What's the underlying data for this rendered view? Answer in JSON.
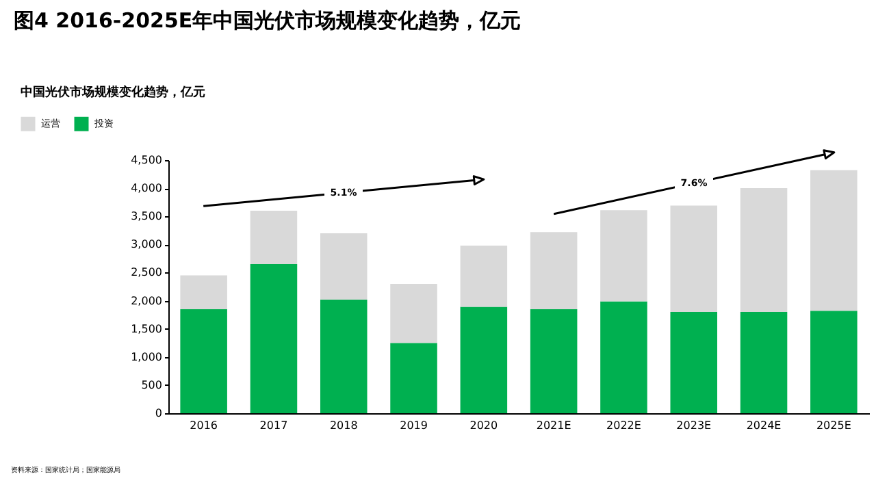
{
  "chart_data": {
    "type": "bar",
    "title": "图4 2016-2025E年中国光伏市场规模变化趋势，亿元",
    "subtitle": "中国光伏市场规模变化趋势，亿元",
    "categories": [
      "2016",
      "2017",
      "2018",
      "2019",
      "2020",
      "2021E",
      "2022E",
      "2023E",
      "2024E",
      "2025E"
    ],
    "stacked": true,
    "series": [
      {
        "name": "投资",
        "color": "#00b050",
        "values": [
          1850,
          2650,
          2020,
          1250,
          1890,
          1850,
          1990,
          1800,
          1800,
          1820
        ]
      },
      {
        "name": "运营",
        "color": "#d9d9d9",
        "values": [
          600,
          950,
          1180,
          1050,
          1090,
          1370,
          1620,
          1890,
          2200,
          2500
        ]
      }
    ],
    "ylim": [
      0,
      4500
    ],
    "yticks": [
      {
        "value": 0,
        "label": "0"
      },
      {
        "value": 500,
        "label": "500"
      },
      {
        "value": 1000,
        "label": "1,000"
      },
      {
        "value": 1500,
        "label": "1,500"
      },
      {
        "value": 2000,
        "label": "2,000"
      },
      {
        "value": 2500,
        "label": "2,500"
      },
      {
        "value": 3000,
        "label": "3,000"
      },
      {
        "value": 3500,
        "label": "3,500"
      },
      {
        "value": 4000,
        "label": "4,000"
      },
      {
        "value": 4500,
        "label": "4,500"
      }
    ],
    "annotations": [
      {
        "text": "5.1%",
        "x": "2018",
        "y": 3920
      },
      {
        "text": "7.6%",
        "x": "2023E",
        "y": 4090
      },
      "资料来源：国家统计局；国家能源局"
    ],
    "legend": "top left",
    "grid": false
  }
}
